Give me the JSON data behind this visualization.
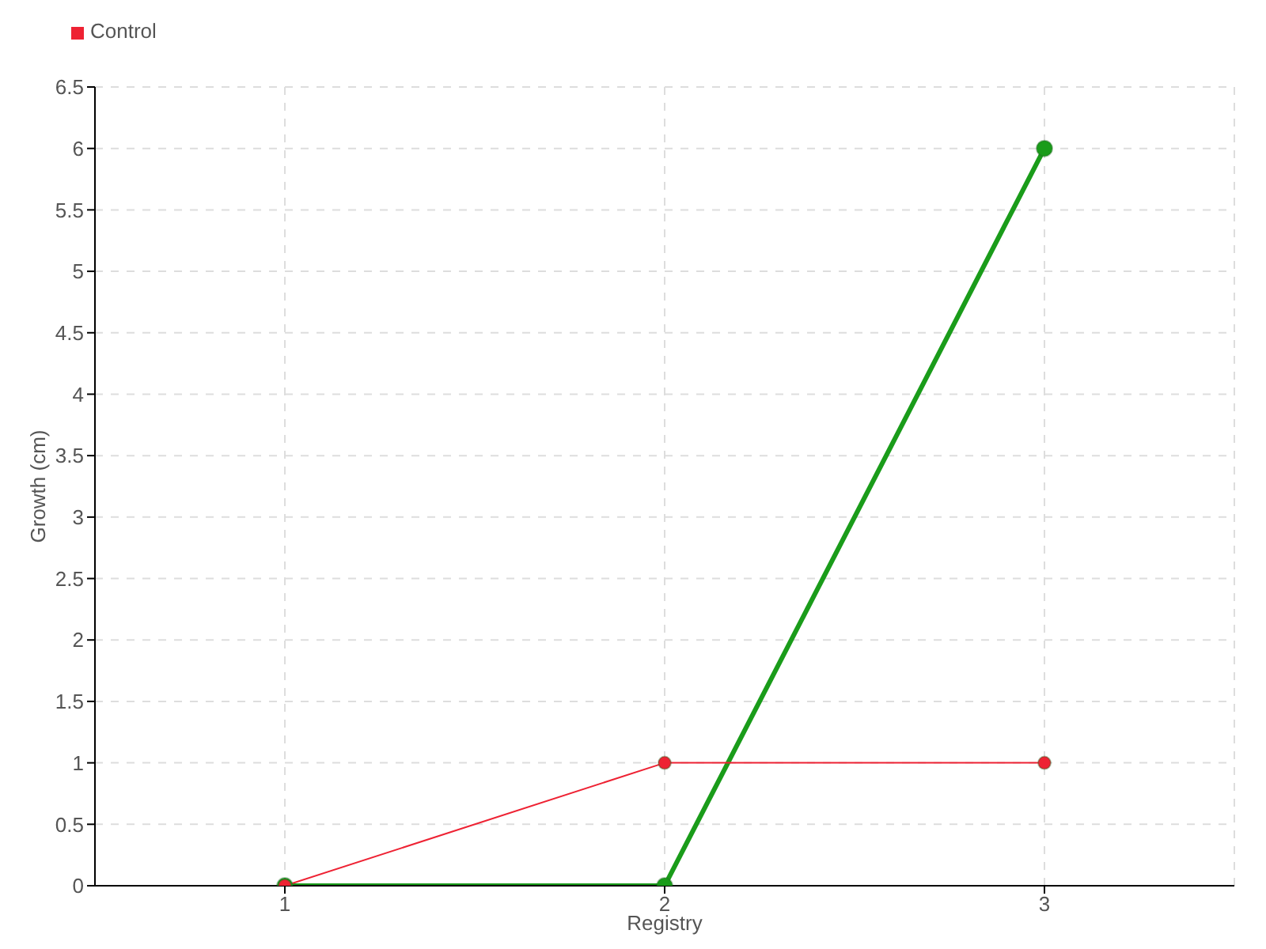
{
  "chart_data": {
    "type": "line",
    "xlabel": "Registry",
    "ylabel": "Growth (cm)",
    "x": [
      1,
      2,
      3
    ],
    "xlim": [
      0.5,
      3.5
    ],
    "xticks": [
      1,
      2,
      3
    ],
    "ylim": [
      0,
      6.5
    ],
    "yticks": [
      0,
      0.5,
      1,
      1.5,
      2,
      2.5,
      3,
      3.5,
      4,
      4.5,
      5,
      5.5,
      6,
      6.5
    ],
    "grid": true,
    "legend": "top left",
    "marker": "circle",
    "line_style": "solid",
    "series": [
      {
        "color": "#1a9c1a",
        "values": [
          0,
          0,
          6
        ]
      },
      {
        "name": "Control",
        "color": "#ee2233",
        "values": [
          0,
          1,
          1
        ]
      }
    ]
  }
}
